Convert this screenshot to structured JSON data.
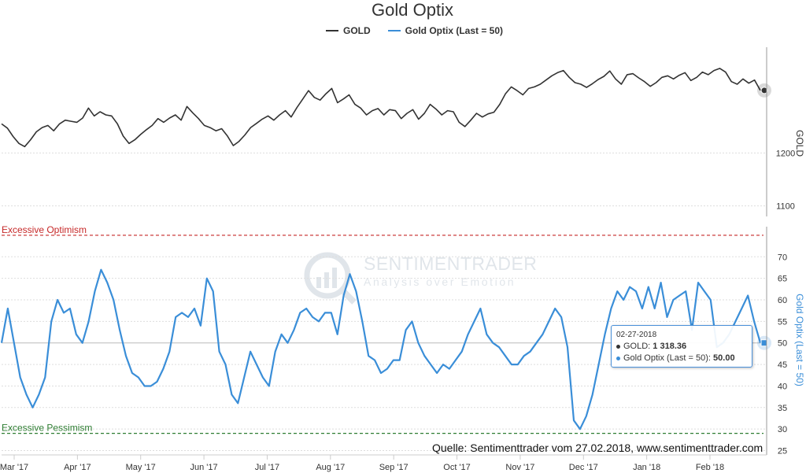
{
  "chart_data": {
    "type": "line",
    "title": "Gold Optix",
    "series": [
      {
        "name": "GOLD",
        "color": "#333333",
        "values": [
          1255,
          1247,
          1231,
          1218,
          1212,
          1225,
          1240,
          1248,
          1252,
          1242,
          1255,
          1262,
          1260,
          1258,
          1266,
          1285,
          1270,
          1278,
          1272,
          1270,
          1255,
          1232,
          1218,
          1225,
          1235,
          1244,
          1252,
          1265,
          1258,
          1266,
          1272,
          1262,
          1288,
          1276,
          1265,
          1252,
          1248,
          1242,
          1246,
          1232,
          1214,
          1222,
          1234,
          1248,
          1256,
          1264,
          1270,
          1262,
          1272,
          1280,
          1268,
          1286,
          1302,
          1318,
          1305,
          1300,
          1312,
          1322,
          1295,
          1302,
          1310,
          1292,
          1285,
          1272,
          1280,
          1284,
          1272,
          1282,
          1280,
          1265,
          1275,
          1282,
          1264,
          1275,
          1292,
          1283,
          1272,
          1280,
          1278,
          1258,
          1250,
          1262,
          1275,
          1268,
          1274,
          1277,
          1292,
          1312,
          1325,
          1318,
          1310,
          1322,
          1325,
          1330,
          1338,
          1346,
          1352,
          1356,
          1343,
          1333,
          1330,
          1324,
          1331,
          1339,
          1345,
          1355,
          1340,
          1330,
          1348,
          1350,
          1342,
          1335,
          1326,
          1333,
          1343,
          1346,
          1340,
          1347,
          1352,
          1337,
          1343,
          1353,
          1348,
          1356,
          1360,
          1353,
          1335,
          1330,
          1340,
          1332,
          1338,
          1318.36
        ]
      },
      {
        "name": "Gold Optix (Last = 50)",
        "color": "#3a8ed8",
        "values": [
          50,
          58,
          50,
          42,
          38,
          35,
          38,
          42,
          55,
          60,
          57,
          58,
          52,
          50,
          55,
          62,
          67,
          64,
          60,
          53,
          47,
          43,
          42,
          40,
          40,
          41,
          44,
          48,
          56,
          57,
          56,
          58,
          54,
          65,
          62,
          48,
          45,
          38,
          36,
          42,
          48,
          45,
          42,
          40,
          48,
          52,
          50,
          53,
          57,
          58,
          56,
          55,
          57,
          57,
          52,
          61,
          66,
          62,
          55,
          47,
          46,
          43,
          44,
          46,
          46,
          53,
          55,
          50,
          47,
          45,
          43,
          45,
          44,
          46,
          48,
          52,
          55,
          58,
          52,
          50,
          49,
          47,
          45,
          45,
          47,
          48,
          50,
          52,
          55,
          58,
          56,
          49,
          32,
          30,
          33,
          38,
          45,
          52,
          58,
          62,
          60,
          63,
          62,
          58,
          63,
          58,
          64,
          56,
          60,
          61,
          62,
          53,
          64,
          62,
          60,
          49,
          50,
          52,
          55,
          58,
          61,
          55,
          50
        ],
        "last": 50.0
      }
    ],
    "y_axis_gold": {
      "ticks": [
        1100,
        1200
      ],
      "label": "GOLD",
      "ylim": [
        1080,
        1400
      ]
    },
    "y_axis_optix": {
      "ticks": [
        25,
        30,
        35,
        40,
        45,
        50,
        55,
        60,
        65,
        70
      ],
      "label": "Gold Optix (Last = 50)",
      "ylim": [
        24,
        77
      ]
    },
    "x_axis": {
      "ticks": [
        "Mar '17",
        "Apr '17",
        "May '17",
        "Jun '17",
        "Jul '17",
        "Aug '17",
        "Sep '17",
        "Oct '17",
        "Nov '17",
        "Dec '17",
        "Jan '18",
        "Feb '18"
      ]
    },
    "bands": {
      "optimism": {
        "label": "Excessive Optimism",
        "value": 75,
        "color": "#c62828"
      },
      "pessimism": {
        "label": "Excessive Pessimism",
        "value": 29,
        "color": "#2e7d32"
      }
    }
  },
  "legend": {
    "gold": "GOLD",
    "optix": "Gold Optix (Last = 50)"
  },
  "tooltip": {
    "date": "02-27-2018",
    "gold_label": "GOLD:",
    "gold_value": "1 318.36",
    "optix_label": "Gold Optix (Last = 50):",
    "optix_value": "50.00"
  },
  "source": "Quelle: Sentimenttrader vom 27.02.2018, www.sentimenttrader.com",
  "watermark": {
    "line1": "SENTIMENTRADER",
    "line2": "Analysis over Emotion"
  }
}
